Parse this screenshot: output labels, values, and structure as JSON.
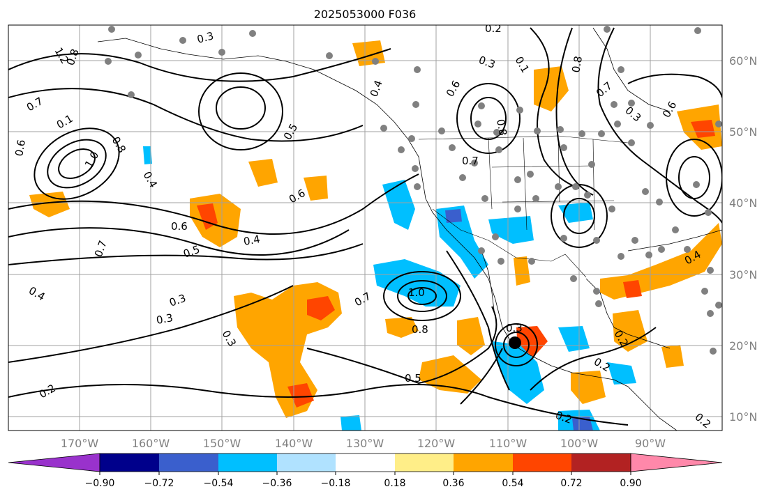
{
  "title": "2025053000 F036",
  "lat_labels": [
    "60°N",
    "50°N",
    "40°N",
    "30°N",
    "20°N",
    "10°N"
  ],
  "lon_labels": [
    "170°W",
    "160°W",
    "150°W",
    "140°W",
    "130°W",
    "120°W",
    "110°W",
    "100°W",
    "90°W"
  ],
  "colorbar": {
    "colors": [
      "#9932cc",
      "#00008b",
      "#3a5fcd",
      "#00bfff",
      "#b0e2ff",
      "#ffffff",
      "#ffee88",
      "#ffa500",
      "#ff4500",
      "#b22222",
      "#ff88aa"
    ],
    "tick_labels": [
      "−0.90",
      "−0.72",
      "−0.54",
      "−0.36",
      "−0.18",
      "0.18",
      "0.36",
      "0.54",
      "0.72",
      "0.90"
    ]
  },
  "contour_labels": [
    "1.2",
    "0.8",
    "0.7",
    "0.6",
    "0.3",
    "0.4",
    "0.5",
    "1.0",
    "0.2",
    "0.1",
    "0.6",
    "0.5",
    "0.4",
    "0.3",
    "0.7",
    "0.8",
    "0.6",
    "0.4",
    "0.3",
    "0.2",
    "0.3",
    "1.0",
    "0.8",
    "0.7",
    "0.5",
    "0.3",
    "0.2",
    "0.2",
    "0.6",
    "0.7",
    "0.3",
    "0.8",
    "0.6",
    "0.4",
    "0.2",
    "0.1",
    "0.4",
    "0.3",
    "0.7",
    "0.8",
    "0.2"
  ]
}
